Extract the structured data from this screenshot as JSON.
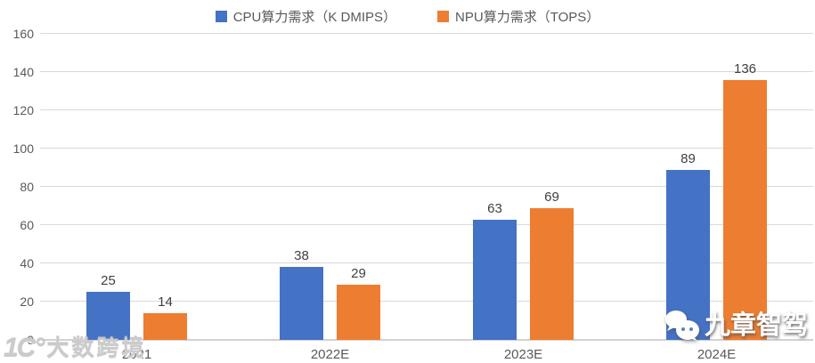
{
  "chart_data": {
    "type": "bar",
    "categories": [
      "2021",
      "2022E",
      "2023E",
      "2024E"
    ],
    "series": [
      {
        "name": "CPU算力需求（K DMIPS）",
        "color": "#4472C4",
        "values": [
          25,
          38,
          63,
          89
        ]
      },
      {
        "name": "NPU算力需求（TOPS）",
        "color": "#ED7D31",
        "values": [
          14,
          29,
          69,
          136
        ]
      }
    ],
    "title": "",
    "xlabel": "",
    "ylabel": "",
    "ylim": [
      0,
      160
    ],
    "ytick_step": 20,
    "grid": true,
    "legend_position": "top"
  },
  "colors": {
    "cpu_series": "#4472C4",
    "npu_series": "#ED7D31",
    "gridline": "#D9D9D9",
    "axis_text": "#595959",
    "data_label": "#404040",
    "background": "#FFFFFF"
  },
  "watermarks": {
    "bottom_left_logo": "1C°",
    "bottom_left_text": "大数跨境",
    "bottom_right_text": "九章智驾"
  }
}
